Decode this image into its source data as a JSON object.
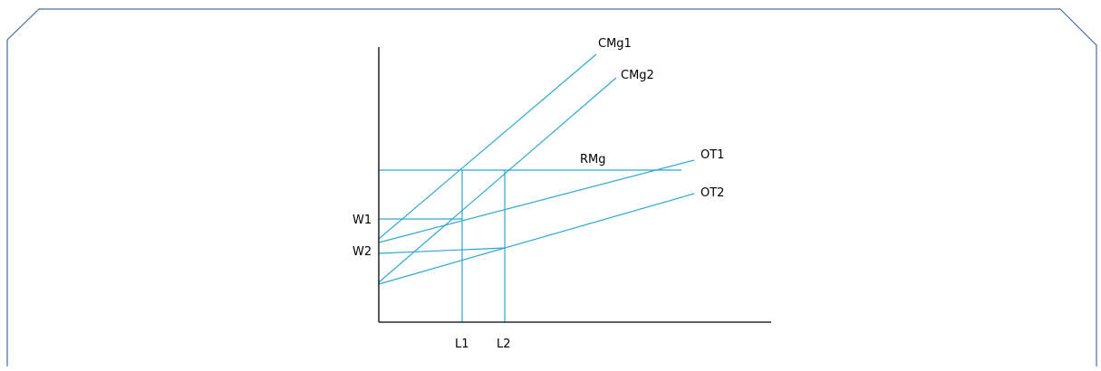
{
  "colors": {
    "frame": "#4a6fa5",
    "curve": "#2ea8d2",
    "axis": "#000000",
    "text": "#000000"
  },
  "labels": {
    "cmg1": "CMg1",
    "cmg2": "CMg2",
    "rmg": "RMg",
    "ot1": "OT1",
    "ot2": "OT2",
    "w1": "W1",
    "w2": "W2",
    "l1": "L1",
    "l2": "L2"
  }
}
